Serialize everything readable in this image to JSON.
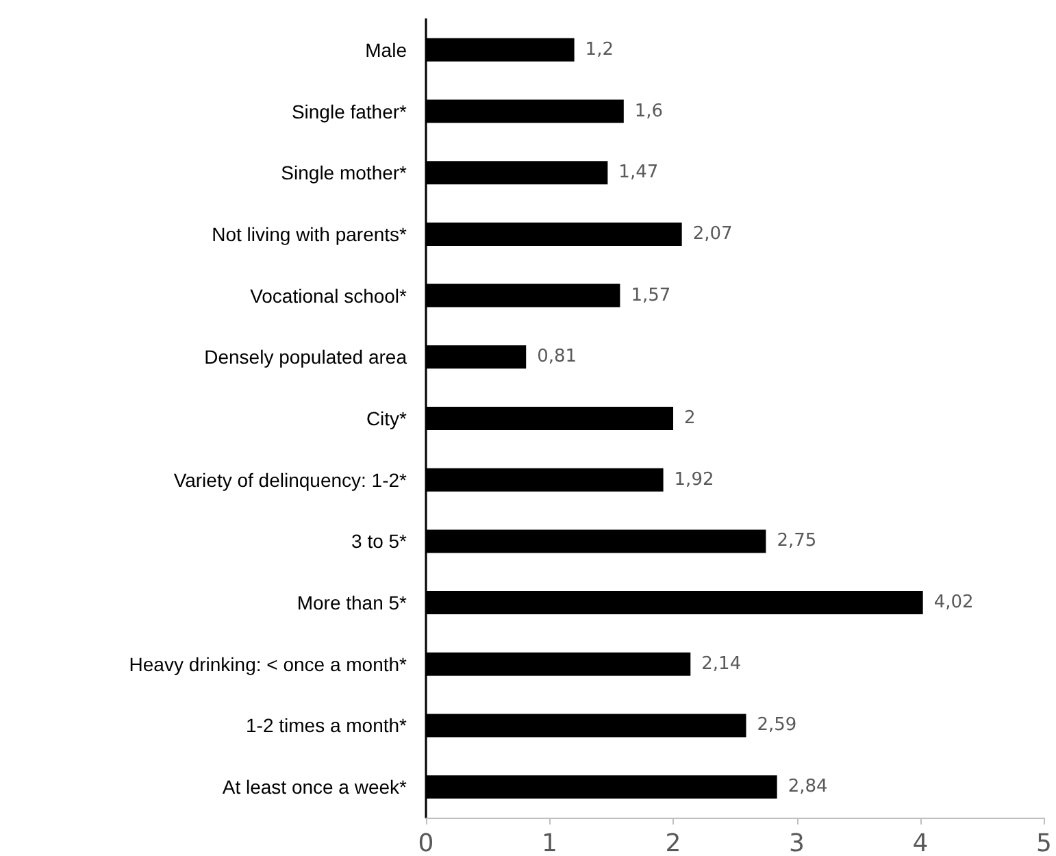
{
  "chart_data": {
    "type": "bar",
    "orientation": "horizontal",
    "categories": [
      "Male",
      "Single father*",
      "Single mother*",
      "Not living with parents*",
      "Vocational school*",
      "Densely populated area",
      "City*",
      "Variety of delinquency: 1-2*",
      "3 to 5*",
      "More than 5*",
      "Heavy drinking: < once a month*",
      "1-2 times a month*",
      "At least once a week*"
    ],
    "values": [
      1.2,
      1.6,
      1.47,
      2.07,
      1.57,
      0.81,
      2,
      1.92,
      2.75,
      4.02,
      2.14,
      2.59,
      2.84
    ],
    "value_labels": [
      "1,2",
      "1,6",
      "1,47",
      "2,07",
      "1,57",
      "0,81",
      "2",
      "1,92",
      "2,75",
      "4,02",
      "2,14",
      "2,59",
      "2,84"
    ],
    "color": "#000000",
    "xlim": [
      0,
      5
    ],
    "xticks": [
      0,
      1,
      2,
      3,
      4,
      5
    ],
    "grid": false
  }
}
